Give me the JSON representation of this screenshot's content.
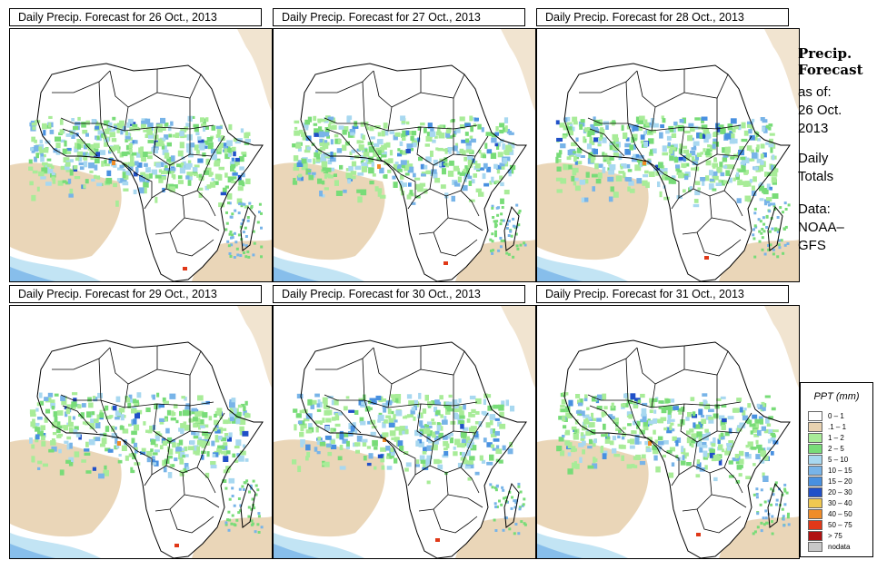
{
  "panels": [
    {
      "title": "Daily Precip. Forecast for  26 Oct., 2013",
      "intensity": 1.0
    },
    {
      "title": "Daily Precip. Forecast for  27 Oct., 2013",
      "intensity": 0.9
    },
    {
      "title": "Daily Precip. Forecast for  28 Oct., 2013",
      "intensity": 1.0
    },
    {
      "title": "Daily Precip. Forecast for  29 Oct., 2013",
      "intensity": 0.8
    },
    {
      "title": "Daily Precip. Forecast for  30 Oct., 2013",
      "intensity": 0.75
    },
    {
      "title": "Daily Precip. Forecast for  31 Oct., 2013",
      "intensity": 0.85
    }
  ],
  "sidebar": {
    "heading_line1": "Precip.",
    "heading_line2": "Forecast",
    "asof_line1": "as of:",
    "asof_line2": "26 Oct.",
    "asof_line3": "2013",
    "daily_line1": "Daily",
    "daily_line2": "Totals",
    "data_line1": "Data:",
    "data_line2": "NOAA–",
    "data_line3": "GFS"
  },
  "legend": {
    "title": "PPT (mm)",
    "items": [
      {
        "label": "0 – 1",
        "color": "#ffffff"
      },
      {
        "label": ".1 – 1",
        "color": "#e8d2b0"
      },
      {
        "label": "1 – 2",
        "color": "#a8ec98"
      },
      {
        "label": "2 – 5",
        "color": "#78dc78"
      },
      {
        "label": "5 – 10",
        "color": "#a8d8f0"
      },
      {
        "label": "10 – 15",
        "color": "#78b4e8"
      },
      {
        "label": "15 – 20",
        "color": "#4890e0"
      },
      {
        "label": "20 – 30",
        "color": "#2050c8"
      },
      {
        "label": "30 – 40",
        "color": "#f0c850"
      },
      {
        "label": "40 – 50",
        "color": "#f08c28"
      },
      {
        "label": "50 – 75",
        "color": "#e03818"
      },
      {
        "label": "> 75",
        "color": "#b01010"
      },
      {
        "label": "nodata",
        "color": "#c8c8c8"
      }
    ]
  }
}
